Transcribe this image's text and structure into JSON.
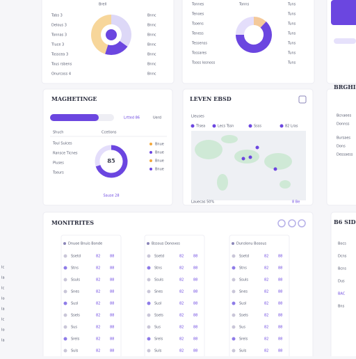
{
  "top_cards": [
    {
      "header": "Brell",
      "rows": [
        [
          "Tabs 3",
          "Bnnc"
        ],
        [
          "Delous 3",
          "Bnnc"
        ],
        [
          "Tonnas 3",
          "Bnnc"
        ],
        [
          "Tluce 3",
          "Bnnc"
        ],
        [
          "Tosscea 3",
          "Bnnc"
        ],
        [
          "Tous rsbens",
          "Bnnc"
        ],
        [
          "Onurcoss 4",
          "Bnnc"
        ]
      ]
    },
    {
      "header": "Tonns",
      "rows": [
        [
          "Tonnes",
          "Tuns"
        ],
        [
          "Tenoes",
          "Tuns"
        ],
        [
          "Tsoens",
          "Tuns"
        ],
        [
          "Teness",
          "Tuns"
        ],
        [
          "Tessenss",
          "Tuns"
        ],
        [
          "Tossares",
          "Tuns"
        ],
        [
          "Tsoss losnoss",
          "Tuns"
        ]
      ]
    }
  ],
  "marketing": {
    "title": "MAGHETINGE",
    "tabs": [
      "Lrtted 86",
      "Uerd"
    ],
    "columns": [
      "Shuch",
      "Ccetions"
    ],
    "rows": [
      "Toul Suices",
      "Ransce Ticnes",
      "Pluses",
      "Tseurs"
    ],
    "center": "85",
    "legend": [
      "Bnue",
      "Bnue",
      "Bnue",
      "Bnue"
    ],
    "footer": "Sause 28"
  },
  "map": {
    "title": "LEVEN EBSD",
    "subtitle": "Lleuses",
    "legend": [
      "Tlsea",
      "Lecs Tssn",
      "Ssss",
      "82 Lras"
    ],
    "footer": "Lauecas 50%",
    "footer_tag": "8 Be"
  },
  "side": {
    "title": "BRGHI",
    "rows": [
      "Bcnaees",
      "Donnss",
      "Bursaes",
      "Dons",
      "Dessaess"
    ]
  },
  "monitors": {
    "title": "MONITRITES",
    "tables": [
      {
        "title": "Dnuoe Bnuis Bonde",
        "rows": [
          [
            "Ssetd",
            "82",
            "88"
          ],
          [
            "Stns",
            "82",
            "88"
          ],
          [
            "Ssuls",
            "82",
            "88"
          ],
          [
            "Snes",
            "82",
            "88"
          ],
          [
            "Susl",
            "82",
            "88"
          ],
          [
            "Ssels",
            "82",
            "88"
          ],
          [
            "Sus",
            "82",
            "88"
          ],
          [
            "Srels",
            "82",
            "88"
          ],
          [
            "Suls",
            "82",
            "88"
          ]
        ]
      },
      {
        "title": "Bssous Donovos",
        "rows": [
          [
            "Ssetd",
            "82",
            "88"
          ],
          [
            "Stns",
            "82",
            "88"
          ],
          [
            "Ssuls",
            "82",
            "88"
          ],
          [
            "Snes",
            "82",
            "88"
          ],
          [
            "Susl",
            "82",
            "88"
          ],
          [
            "Ssels",
            "82",
            "88"
          ],
          [
            "Sus",
            "82",
            "88"
          ],
          [
            "Srels",
            "82",
            "88"
          ],
          [
            "Suls",
            "82",
            "88"
          ]
        ]
      },
      {
        "title": "Dunslonu Bosous",
        "rows": [
          [
            "Ssetd",
            "82",
            "88"
          ],
          [
            "Stns",
            "82",
            "88"
          ],
          [
            "Ssuls",
            "82",
            "88"
          ],
          [
            "Snes",
            "82",
            "88"
          ],
          [
            "Susl",
            "82",
            "88"
          ],
          [
            "Ssels",
            "82",
            "88"
          ],
          [
            "Sus",
            "82",
            "88"
          ],
          [
            "Srels",
            "82",
            "88"
          ],
          [
            "Suls",
            "82",
            "88"
          ]
        ]
      }
    ]
  },
  "side2": {
    "title": "B6 SID",
    "rows": [
      "Bocs",
      "Dcns",
      "Bcns",
      "Dus",
      "BAC",
      "Bns"
    ]
  },
  "edge": [
    "Ic",
    "Ia",
    "Ic",
    "Io",
    "Ia",
    "Ic",
    "Io",
    "Ia"
  ]
}
